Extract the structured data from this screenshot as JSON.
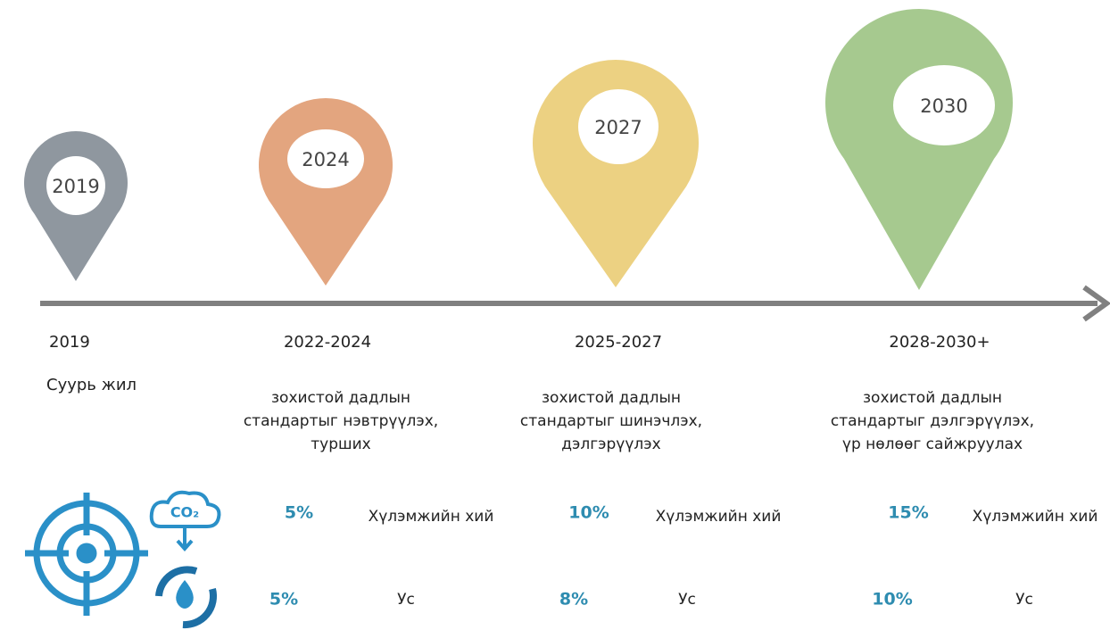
{
  "milestones": [
    {
      "pin": "2019",
      "period": "2019",
      "note": "Суурь жил"
    },
    {
      "pin": "2024",
      "period": "2022-2024",
      "description": [
        "зохистой дадлын",
        "стандартыг нэвтрүүлэх,",
        "турших"
      ],
      "targets": [
        {
          "value": "5%",
          "label": "Хүлэмжийн хий"
        },
        {
          "value": "5%",
          "label": "Ус"
        }
      ]
    },
    {
      "pin": "2027",
      "period": "2025-2027",
      "description": [
        "зохистой дадлын",
        "стандартыг шинэчлэх,",
        "дэлгэрүүлэх"
      ],
      "targets": [
        {
          "value": "10%",
          "label": "Хүлэмжийн хий"
        },
        {
          "value": "8%",
          "label": "Ус"
        }
      ]
    },
    {
      "pin": "2030",
      "period": "2028-2030+",
      "description": [
        "зохистой дадлын",
        "стандартыг дэлгэрүүлэх,",
        "үр нөлөөг сайжруулах"
      ],
      "targets": [
        {
          "value": "15%",
          "label": "Хүлэмжийн хий"
        },
        {
          "value": "10%",
          "label": "Ус"
        }
      ]
    }
  ],
  "icons": {
    "co2": "CO₂"
  }
}
